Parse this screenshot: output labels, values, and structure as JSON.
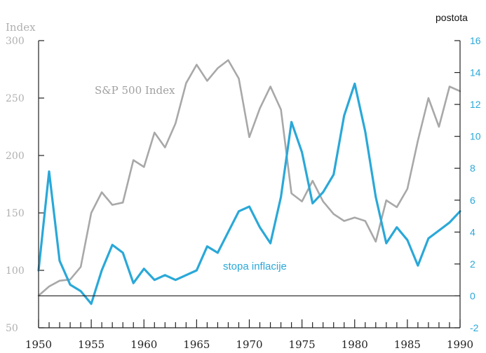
{
  "chart_data": {
    "type": "line",
    "title": "",
    "xlabel": "",
    "x_ticks": [
      1950,
      1955,
      1960,
      1965,
      1970,
      1975,
      1980,
      1985,
      1990
    ],
    "xlim": [
      1950,
      1990
    ],
    "left_axis": {
      "label": "Index",
      "ylim": [
        50,
        300
      ],
      "ticks": [
        50,
        100,
        150,
        200,
        250,
        300
      ]
    },
    "right_axis": {
      "label": "postota",
      "ylim": [
        -2,
        16
      ],
      "ticks": [
        -2,
        0,
        2,
        4,
        6,
        8,
        10,
        12,
        14,
        16
      ]
    },
    "series": [
      {
        "name": "S&P 500 Index",
        "axis": "left",
        "color": "#a8a8a8",
        "x": [
          1950,
          1951,
          1952,
          1953,
          1954,
          1955,
          1956,
          1957,
          1958,
          1959,
          1960,
          1961,
          1962,
          1963,
          1964,
          1965,
          1966,
          1967,
          1968,
          1969,
          1970,
          1971,
          1972,
          1973,
          1974,
          1975,
          1976,
          1977,
          1978,
          1979,
          1980,
          1981,
          1982,
          1983,
          1984,
          1985,
          1986,
          1987,
          1988,
          1989,
          1990
        ],
        "values": [
          78,
          86,
          91,
          92,
          103,
          150,
          168,
          157,
          159,
          196,
          190,
          220,
          207,
          228,
          263,
          279,
          265,
          276,
          283,
          267,
          216,
          241,
          260,
          240,
          167,
          160,
          178,
          160,
          149,
          143,
          146,
          143,
          125,
          161,
          155,
          171,
          213,
          250,
          225,
          260,
          256
        ]
      },
      {
        "name": "stopa inflacije",
        "axis": "right",
        "color": "#2aa8d8",
        "x": [
          1950,
          1951,
          1952,
          1953,
          1954,
          1955,
          1956,
          1957,
          1958,
          1959,
          1960,
          1961,
          1962,
          1963,
          1964,
          1965,
          1966,
          1967,
          1968,
          1969,
          1970,
          1971,
          1972,
          1973,
          1974,
          1975,
          1976,
          1977,
          1978,
          1979,
          1980,
          1981,
          1982,
          1983,
          1984,
          1985,
          1986,
          1987,
          1988,
          1989,
          1990
        ],
        "values": [
          1.6,
          7.8,
          2.2,
          0.7,
          0.3,
          -0.5,
          1.6,
          3.2,
          2.7,
          0.8,
          1.7,
          1.0,
          1.3,
          1.0,
          1.3,
          1.6,
          3.1,
          2.7,
          4.0,
          5.3,
          5.6,
          4.3,
          3.3,
          6.2,
          10.9,
          9.0,
          5.8,
          6.5,
          7.6,
          11.3,
          13.3,
          10.3,
          6.2,
          3.3,
          4.3,
          3.5,
          1.9,
          3.6,
          4.1,
          4.6,
          5.3
        ]
      }
    ],
    "grid": false
  }
}
